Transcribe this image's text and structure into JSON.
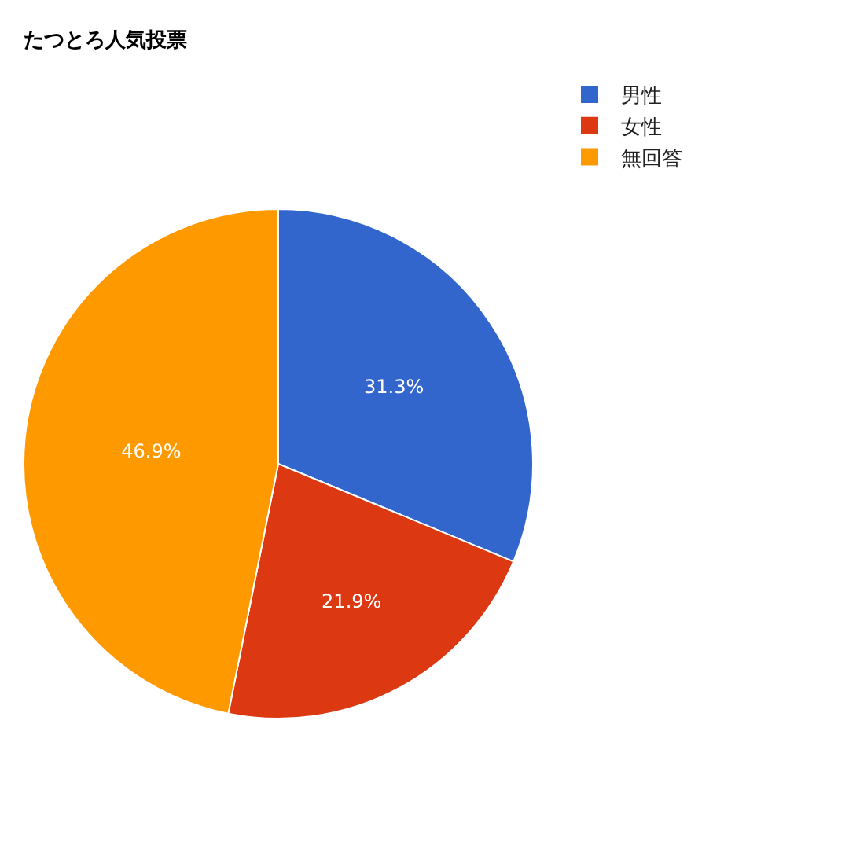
{
  "chart_data": {
    "type": "pie",
    "title": "たつとろ人気投票",
    "categories": [
      "男性",
      "女性",
      "無回答"
    ],
    "values": [
      31.3,
      21.9,
      46.9
    ],
    "colors": [
      "#3366cc",
      "#dc3912",
      "#ff9900"
    ],
    "value_labels": [
      "31.3%",
      "21.9%",
      "46.9%"
    ],
    "legend": "top right"
  }
}
